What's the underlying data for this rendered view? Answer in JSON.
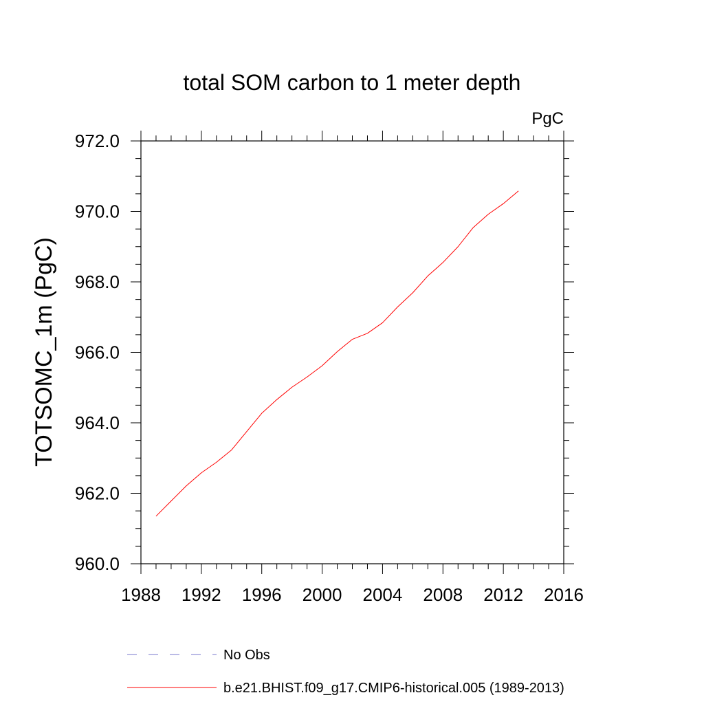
{
  "chart_data": {
    "type": "line",
    "title": "total SOM carbon to 1 meter depth",
    "units": "PgC",
    "ylabel": "TOTSOMC_1m  (PgC)",
    "xlabel": "",
    "xlim": [
      1988,
      2016
    ],
    "ylim": [
      960,
      972
    ],
    "x_ticks": [
      1988,
      1992,
      1996,
      2000,
      2004,
      2008,
      2012,
      2016
    ],
    "y_ticks": [
      960,
      962,
      964,
      966,
      968,
      970,
      972
    ],
    "x_tick_labels": [
      "1988",
      "1992",
      "1996",
      "2000",
      "2004",
      "2008",
      "2012",
      "2016"
    ],
    "y_tick_labels": [
      "960.0",
      "962.0",
      "964.0",
      "966.0",
      "968.0",
      "970.0",
      "972.0"
    ],
    "x_minor_step": 1,
    "y_minor_step": 0.5,
    "grid": false,
    "series": [
      {
        "name": "b.e21.BHIST.f09_g17.CMIP6-historical.005 (1989-2013)",
        "color": "#ff0000",
        "style": "solid",
        "x": [
          1989,
          1990,
          1991,
          1992,
          1993,
          1994,
          1995,
          1996,
          1997,
          1998,
          1999,
          2000,
          2001,
          2002,
          2003,
          2004,
          2005,
          2006,
          2007,
          2008,
          2009,
          2010,
          2011,
          2012,
          2013
        ],
        "values": [
          961.35,
          961.78,
          962.21,
          962.58,
          962.88,
          963.23,
          963.75,
          964.27,
          964.66,
          965.01,
          965.3,
          965.62,
          966.02,
          966.37,
          966.54,
          966.84,
          967.29,
          967.69,
          968.17,
          968.55,
          969.0,
          969.54,
          969.92,
          970.22,
          970.58
        ]
      }
    ],
    "legend": [
      {
        "label": "No Obs",
        "color": "#7777cc",
        "style": "dashed"
      },
      {
        "label": "b.e21.BHIST.f09_g17.CMIP6-historical.005 (1989-2013)",
        "color": "#ff0000",
        "style": "solid"
      }
    ],
    "legend_position": "bottom-left"
  }
}
